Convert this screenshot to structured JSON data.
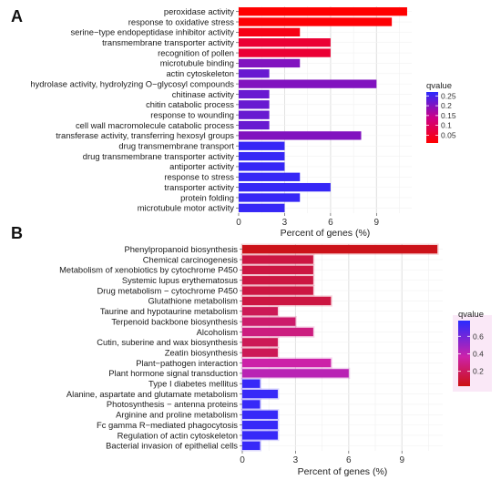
{
  "chart_data": [
    {
      "panel": "A",
      "type": "bar",
      "orientation": "horizontal",
      "xlabel": "Percent of genes (%)",
      "xlim": [
        0,
        11.3
      ],
      "xticks": [
        0,
        3,
        6,
        9
      ],
      "grid": true,
      "legend": {
        "title": "qvalue",
        "placement": "right",
        "ticks": [
          0.25,
          0.2,
          0.15,
          0.1,
          0.05
        ],
        "range": [
          0.01,
          0.27
        ],
        "colors": [
          "#ff0000",
          "#2a2aff"
        ]
      },
      "categories": [
        "peroxidase activity",
        "response to oxidative stress",
        "serine−type endopeptidase inhibitor activity",
        "transmembrane transporter activity",
        "recognition of pollen",
        "microtubule binding",
        "actin cytoskeleton",
        "hydrolase activity, hydrolyzing O−glycosyl compounds",
        "chitinase activity",
        "chitin catabolic process",
        "response to wounding",
        "cell wall macromolecule catabolic process",
        "transferase activity, transferring hexosyl groups",
        "drug transmembrane transport",
        "drug transmembrane transporter activity",
        "antiporter activity",
        "response to stress",
        "transporter activity",
        "protein folding",
        "microtubule motor activity"
      ],
      "values": [
        11,
        10,
        4,
        6,
        6,
        4,
        2,
        9,
        2,
        2,
        2,
        2,
        8,
        3,
        3,
        3,
        4,
        6,
        4,
        3
      ],
      "qvalues": [
        0.01,
        0.015,
        0.03,
        0.06,
        0.06,
        0.2,
        0.22,
        0.2,
        0.22,
        0.22,
        0.22,
        0.22,
        0.2,
        0.26,
        0.26,
        0.26,
        0.26,
        0.26,
        0.26,
        0.26
      ]
    },
    {
      "panel": "B",
      "type": "bar",
      "orientation": "horizontal",
      "xlabel": "Percent of genes (%)",
      "xlim": [
        0,
        11.3
      ],
      "xticks": [
        0,
        3,
        6,
        9
      ],
      "grid": true,
      "legend": {
        "title": "qvalue",
        "placement": "right",
        "ticks": [
          0.6,
          0.4,
          0.2
        ],
        "range": [
          0.03,
          0.78
        ],
        "colors": [
          "#cc1111",
          "#2a2aff"
        ]
      },
      "categories": [
        "Phenylpropanoid biosynthesis",
        "Chemical carcinogenesis",
        "Metabolism of xenobiotics by cytochrome P450",
        "Systemic lupus erythematosus",
        "Drug metabolism − cytochrome P450",
        "Glutathione metabolism",
        "Taurine and hypotaurine metabolism",
        "Terpenoid backbone biosynthesis",
        "Alcoholism",
        "Cutin, suberine and wax biosynthesis",
        "Zeatin biosynthesis",
        "Plant−pathogen interaction",
        "Plant hormone signal transduction",
        "Type I diabetes mellitus",
        "Alanine, aspartate and glutamate metabolism",
        "Photosynthesis − antenna proteins",
        "Arginine and proline metabolism",
        "Fc gamma R−mediated phagocytosis",
        "Regulation of actin cytoskeleton",
        "Bacterial invasion of epithelial cells"
      ],
      "values": [
        11,
        4,
        4,
        4,
        4,
        5,
        2,
        3,
        4,
        2,
        2,
        5,
        6,
        1,
        2,
        1,
        2,
        2,
        2,
        1
      ],
      "qvalues": [
        0.05,
        0.15,
        0.15,
        0.15,
        0.15,
        0.15,
        0.2,
        0.25,
        0.3,
        0.2,
        0.2,
        0.4,
        0.45,
        0.75,
        0.75,
        0.75,
        0.75,
        0.75,
        0.75,
        0.75
      ]
    }
  ]
}
